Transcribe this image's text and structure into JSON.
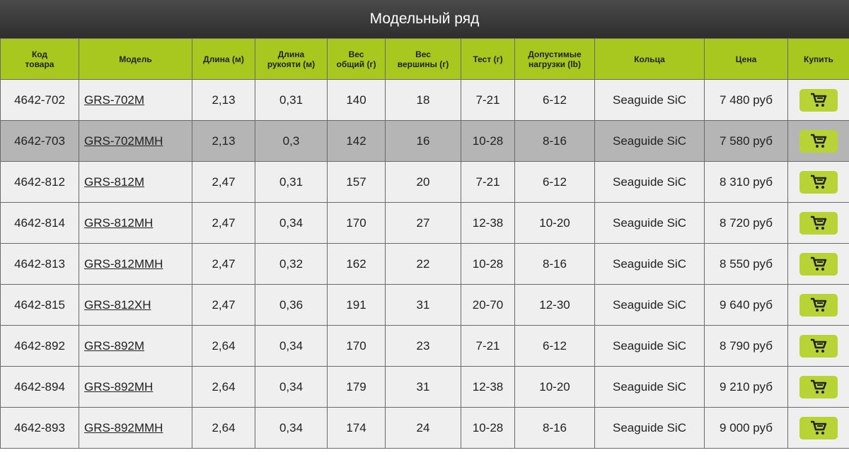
{
  "header": {
    "title": "Модельный ряд"
  },
  "table": {
    "columns": [
      "Код\nтовара",
      "Модель",
      "Длина (м)",
      "Длина\nрукояти (м)",
      "Вес\nобщий (г)",
      "Вес\nвершины (г)",
      "Тест (г)",
      "Допустимые\nнагрузки (lb)",
      "Кольца",
      "Цена",
      "Купить"
    ],
    "rows": [
      [
        "4642-702",
        "GRS-702M",
        "2,13",
        "0,31",
        "140",
        "18",
        "7-21",
        "6-12",
        "Seaguide SiC",
        "7 480 руб"
      ],
      [
        "4642-703",
        "GRS-702MMH",
        "2,13",
        "0,3",
        "142",
        "16",
        "10-28",
        "8-16",
        "Seaguide SiC",
        "7 580 руб"
      ],
      [
        "4642-812",
        "GRS-812M",
        "2,47",
        "0,31",
        "157",
        "20",
        "7-21",
        "6-12",
        "Seaguide SiC",
        "8 310 руб"
      ],
      [
        "4642-814",
        "GRS-812MH",
        "2,47",
        "0,34",
        "170",
        "27",
        "12-38",
        "10-20",
        "Seaguide SiC",
        "8 720 руб"
      ],
      [
        "4642-813",
        "GRS-812MMH",
        "2,47",
        "0,32",
        "162",
        "22",
        "10-28",
        "8-16",
        "Seaguide SiC",
        "8 550 руб"
      ],
      [
        "4642-815",
        "GRS-812XH",
        "2,47",
        "0,36",
        "191",
        "31",
        "20-70",
        "12-30",
        "Seaguide SiC",
        "9 640 руб"
      ],
      [
        "4642-892",
        "GRS-892M",
        "2,64",
        "0,34",
        "170",
        "23",
        "7-21",
        "6-12",
        "Seaguide SiC",
        "8 790 руб"
      ],
      [
        "4642-894",
        "GRS-892MH",
        "2,64",
        "0,34",
        "179",
        "31",
        "12-38",
        "10-20",
        "Seaguide SiC",
        "9 210 руб"
      ],
      [
        "4642-893",
        "GRS-892MMH",
        "2,64",
        "0,34",
        "174",
        "24",
        "10-28",
        "8-16",
        "Seaguide SiC",
        "9 000 руб"
      ]
    ]
  }
}
